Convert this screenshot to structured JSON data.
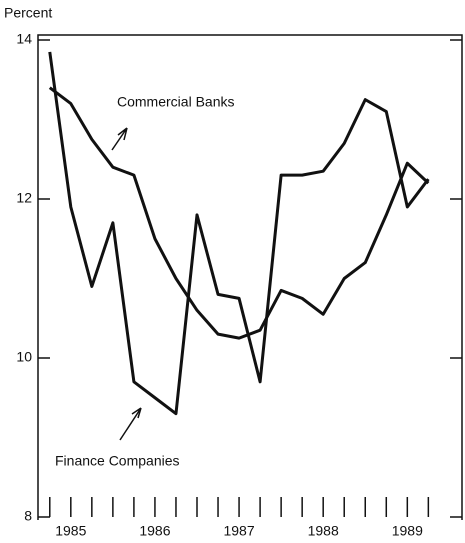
{
  "chart_data": {
    "type": "line",
    "y_axis_label": "Percent",
    "x": [
      1985.0,
      1985.25,
      1985.5,
      1985.75,
      1986.0,
      1986.25,
      1986.5,
      1986.75,
      1987.0,
      1987.25,
      1987.5,
      1987.75,
      1988.0,
      1988.25,
      1988.5,
      1988.75,
      1989.0,
      1989.25,
      1989.5
    ],
    "series": [
      {
        "name": "Commercial Banks",
        "color": "#111111",
        "values": [
          13.4,
          13.2,
          12.75,
          12.4,
          12.3,
          11.5,
          11.0,
          10.6,
          10.3,
          10.25,
          10.35,
          10.85,
          10.75,
          10.55,
          11.0,
          11.2,
          11.8,
          12.45,
          12.2
        ]
      },
      {
        "name": "Finance Companies",
        "color": "#111111",
        "values": [
          13.85,
          11.9,
          10.9,
          11.7,
          9.7,
          9.5,
          9.3,
          11.8,
          10.8,
          10.75,
          9.7,
          12.3,
          12.3,
          12.35,
          12.7,
          13.25,
          13.1,
          11.9,
          12.25
        ]
      }
    ],
    "xlim": [
      1984.86,
      1989.9
    ],
    "xticks": [
      {
        "value": 1985.25,
        "label": "1985"
      },
      {
        "value": 1986.25,
        "label": "1986"
      },
      {
        "value": 1987.25,
        "label": "1987"
      },
      {
        "value": 1988.25,
        "label": "1988"
      },
      {
        "value": 1989.25,
        "label": "1989"
      }
    ],
    "ylim": [
      8,
      14
    ],
    "yticks": [
      8,
      10,
      12,
      14
    ]
  }
}
